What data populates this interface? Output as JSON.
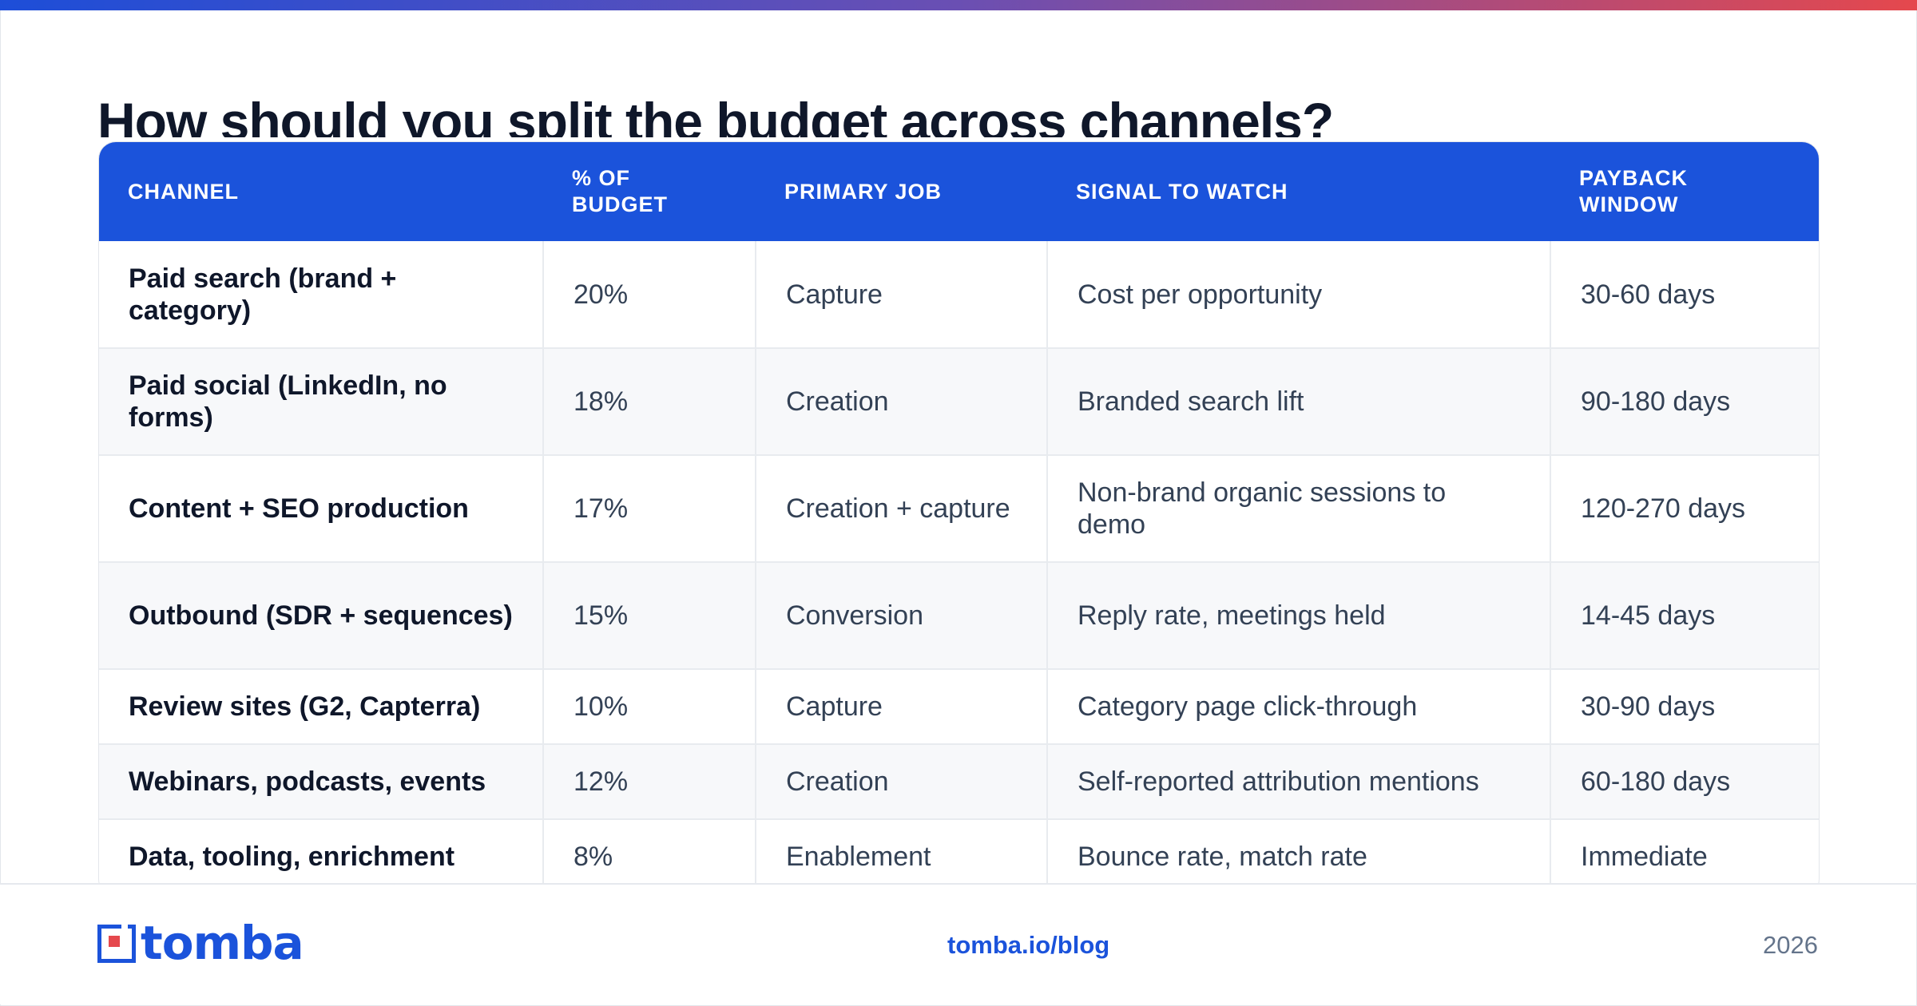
{
  "title": "How should you split the budget across channels?",
  "colors": {
    "accent": "#1b53db",
    "gradient_start": "#1d4ed8",
    "gradient_end": "#e5484d",
    "zebra": "#f7f8fa"
  },
  "table": {
    "headers": [
      "CHANNEL",
      "% OF BUDGET",
      "PRIMARY JOB",
      "SIGNAL TO WATCH",
      "PAYBACK WINDOW"
    ],
    "rows": [
      [
        "Paid search (brand + category)",
        "20%",
        "Capture",
        "Cost per opportunity",
        "30-60 days"
      ],
      [
        "Paid social (LinkedIn, no forms)",
        "18%",
        "Creation",
        "Branded search lift",
        "90-180 days"
      ],
      [
        "Content + SEO production",
        "17%",
        "Creation + capture",
        "Non-brand organic sessions to demo",
        "120-270 days"
      ],
      [
        "Outbound (SDR + sequences)",
        "15%",
        "Conversion",
        "Reply rate, meetings held",
        "14-45 days"
      ],
      [
        "Review sites (G2, Capterra)",
        "10%",
        "Capture",
        "Category page click-through",
        "30-90 days"
      ],
      [
        "Webinars, podcasts, events",
        "12%",
        "Creation",
        "Self-reported attribution mentions",
        "60-180 days"
      ],
      [
        "Data, tooling, enrichment",
        "8%",
        "Enablement",
        "Bounce rate, match rate",
        "Immediate"
      ]
    ]
  },
  "footer": {
    "logo_text": "tomba",
    "logo_icon": "tomba-logo-icon",
    "link": "tomba.io/blog",
    "year": "2026"
  }
}
